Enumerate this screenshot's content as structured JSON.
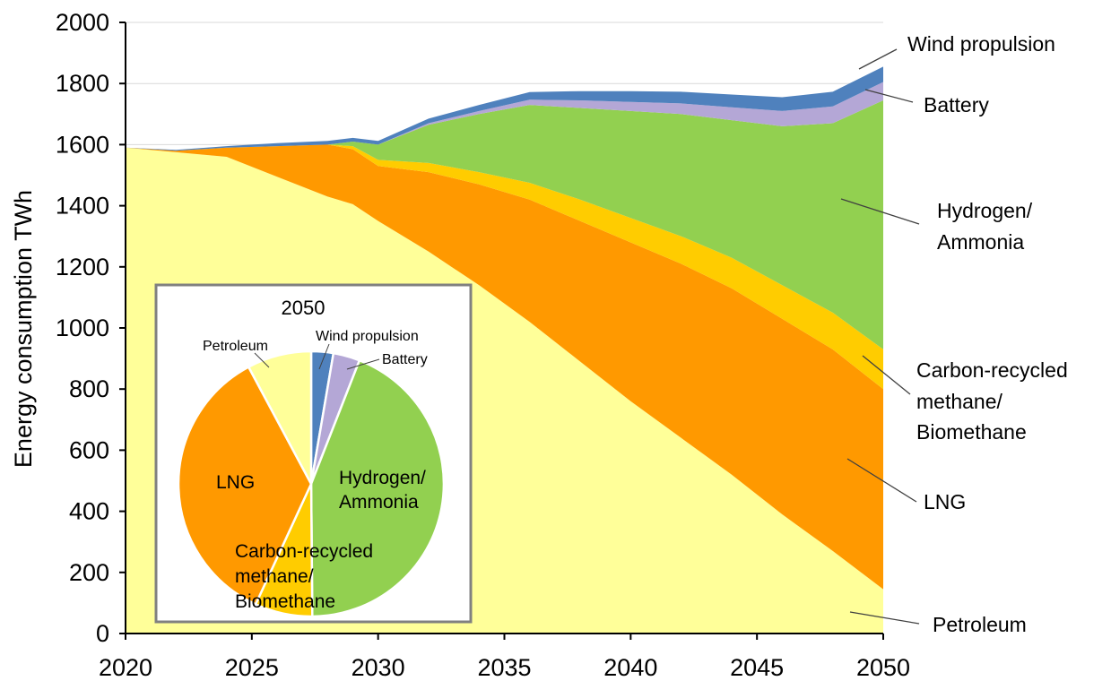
{
  "chart_data": [
    {
      "type": "area",
      "ylabel": "Energy consumption  TWh",
      "ylim": [
        0,
        2000
      ],
      "yticks": [
        "0",
        "200",
        "400",
        "600",
        "800",
        "1000",
        "1200",
        "1400",
        "1600",
        "1800",
        "2000"
      ],
      "xlim": [
        2020,
        2050
      ],
      "xticks": [
        "2020",
        "2025",
        "2030",
        "2035",
        "2040",
        "2045",
        "2050"
      ],
      "grid": "horizontal",
      "x": [
        2020,
        2022,
        2024,
        2026,
        2028,
        2029,
        2030,
        2032,
        2034,
        2036,
        2038,
        2040,
        2042,
        2044,
        2046,
        2048,
        2050
      ],
      "series": [
        {
          "name": "Petroleum",
          "color": "#FFFF99",
          "values": [
            1590,
            1575,
            1560,
            1495,
            1430,
            1405,
            1350,
            1250,
            1140,
            1020,
            890,
            760,
            640,
            520,
            390,
            270,
            145
          ]
        },
        {
          "name": "LNG",
          "color": "#FF9900",
          "values": [
            0,
            5,
            30,
            100,
            170,
            180,
            180,
            260,
            330,
            400,
            460,
            520,
            570,
            610,
            640,
            660,
            655
          ]
        },
        {
          "name": "Carbon-recycled methane/ Biomethane",
          "color": "#FFCC00",
          "values": [
            0,
            0,
            0,
            0,
            0,
            10,
            20,
            30,
            40,
            55,
            70,
            80,
            90,
            100,
            110,
            120,
            130
          ]
        },
        {
          "name": "Hydrogen/ Ammonia",
          "color": "#92D050",
          "values": [
            0,
            0,
            0,
            0,
            0,
            15,
            50,
            125,
            190,
            255,
            300,
            350,
            400,
            450,
            520,
            620,
            815
          ]
        },
        {
          "name": "Battery",
          "color": "#B4A7D6",
          "values": [
            0,
            0,
            0,
            0,
            0,
            0,
            0,
            5,
            10,
            17,
            25,
            30,
            35,
            42,
            50,
            55,
            60
          ]
        },
        {
          "name": "Wind propulsion",
          "color": "#4F81BD",
          "values": [
            0,
            3,
            5,
            10,
            12,
            12,
            12,
            15,
            20,
            25,
            30,
            35,
            38,
            42,
            45,
            48,
            50
          ]
        }
      ],
      "callouts": [
        "Wind propulsion",
        "Battery",
        "Hydrogen/",
        "Ammonia",
        "Carbon-recycled",
        "methane/",
        "Biomethane",
        "LNG",
        "Petroleum"
      ]
    },
    {
      "type": "pie",
      "title": "2050",
      "slices": [
        {
          "name": "Wind propulsion",
          "value": 50,
          "color": "#4F81BD"
        },
        {
          "name": "Battery",
          "value": 60,
          "color": "#B4A7D6"
        },
        {
          "name": "Hydrogen/ Ammonia",
          "value": 815,
          "color": "#92D050"
        },
        {
          "name": "Carbon-recycled methane/ Biomethane",
          "value": 130,
          "color": "#FFCC00"
        },
        {
          "name": "LNG",
          "value": 655,
          "color": "#FF9900"
        },
        {
          "name": "Petroleum",
          "value": 145,
          "color": "#FFFF99"
        }
      ],
      "labels": {
        "petroleum": "Petroleum",
        "wind": "Wind propulsion",
        "battery": "Battery",
        "hydrogen": [
          "Hydrogen/",
          "Ammonia"
        ],
        "lng": "LNG",
        "methane": [
          "Carbon-recycled",
          "methane/",
          "Biomethane"
        ]
      }
    }
  ]
}
